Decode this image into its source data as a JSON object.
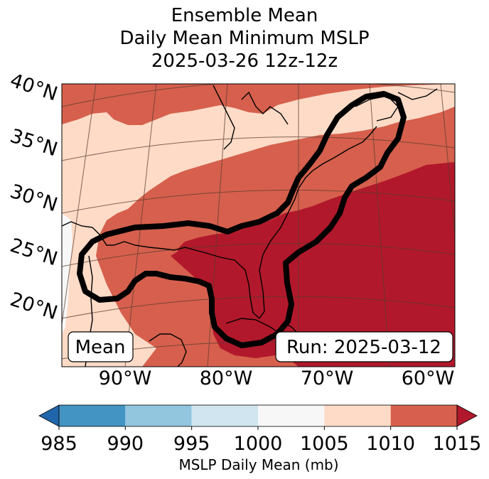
{
  "chart_data": {
    "type": "heatmap",
    "title_lines": [
      "Ensemble Mean",
      "Daily Mean Minimum MSLP",
      "2025-03-26 12z-12z"
    ],
    "lat_ticks": [
      "40°N",
      "35°N",
      "30°N",
      "25°N",
      "20°N"
    ],
    "lon_ticks": [
      "90°W",
      "80°W",
      "70°W",
      "60°W"
    ],
    "colorbar": {
      "label": "MSLP Daily Mean (mb)",
      "ticks": [
        "985",
        "990",
        "995",
        "1000",
        "1005",
        "1010",
        "1015"
      ],
      "levels": [
        985,
        990,
        995,
        1000,
        1005,
        1010,
        1015
      ],
      "colors": [
        "#4393c3",
        "#92c5de",
        "#d1e5f0",
        "#f7f7f7",
        "#fddbc7",
        "#d6604d",
        "#b2182b"
      ],
      "under_color": "#2166ac",
      "over_color": "#b2182b",
      "extend": "both"
    },
    "regions": [
      {
        "name": "1005-1010 band",
        "value_range": [
          1005,
          1010
        ],
        "color": "#fddbc7"
      },
      {
        "name": "1010-1015 band",
        "value_range": [
          1010,
          1015
        ],
        "color": "#d6604d"
      },
      {
        "name": ">1015 band",
        "value_range": [
          1015,
          null
        ],
        "color": "#b2182b"
      },
      {
        "name": "1000-1005 band",
        "value_range": [
          1000,
          1005
        ],
        "color": "#f7f7f7"
      }
    ],
    "contour_color": "#000000"
  },
  "annotations": {
    "left_box": "Mean",
    "right_box": "Run: 2025-03-12"
  }
}
